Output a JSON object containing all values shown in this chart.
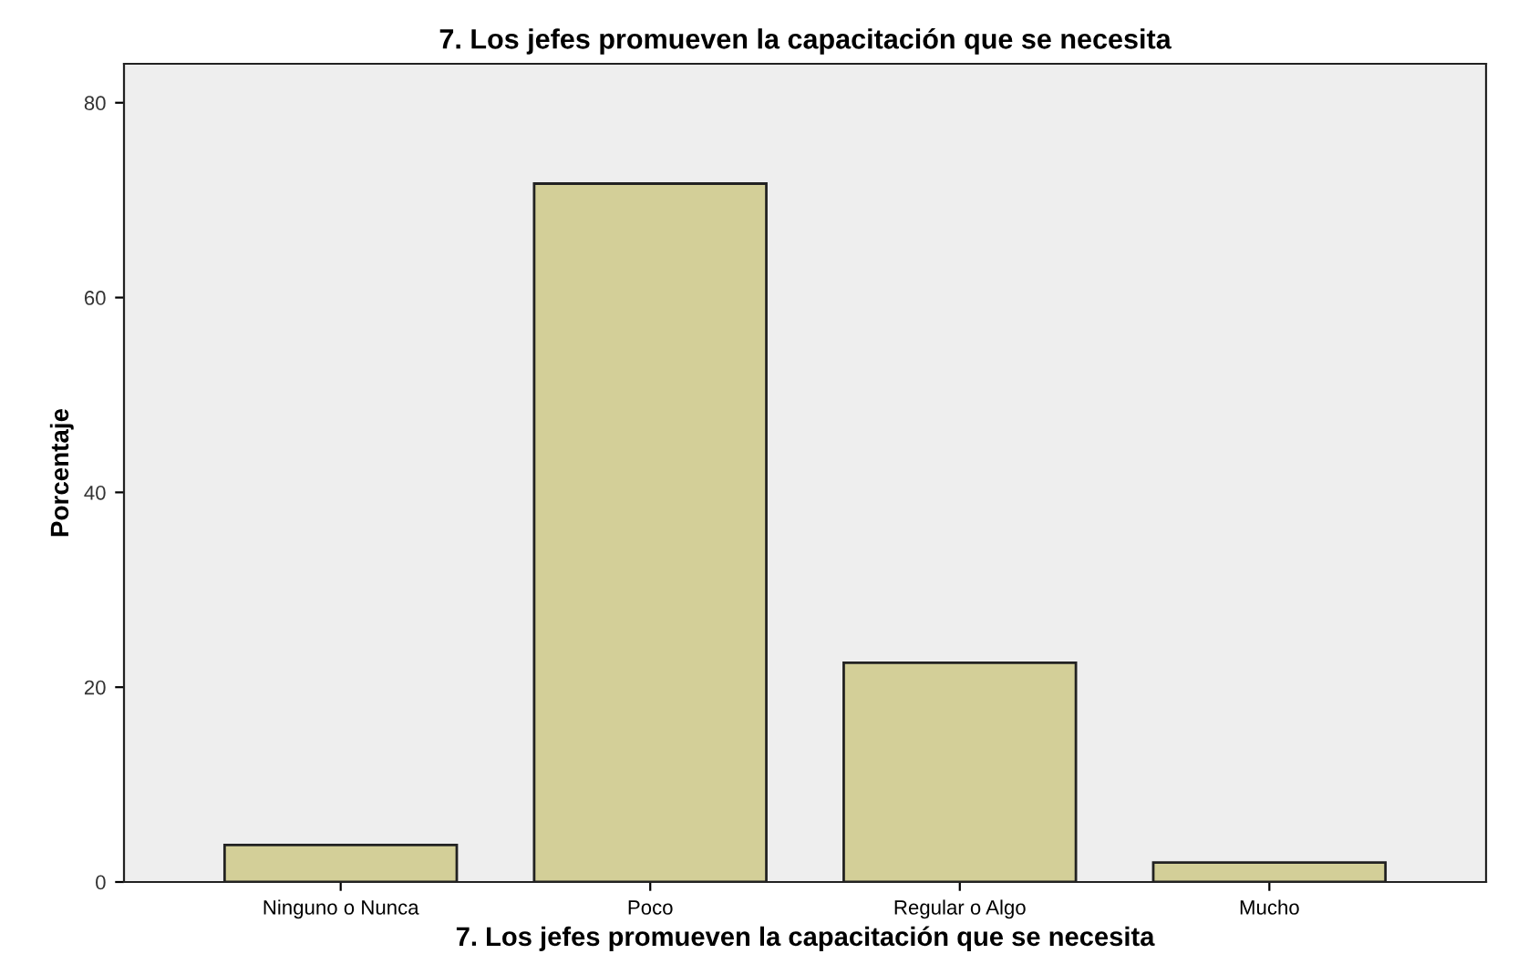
{
  "chart_data": {
    "type": "bar",
    "title": "7. Los jefes promueven la capacitación que se necesita",
    "xlabel": "7. Los jefes promueven la capacitación que se necesita",
    "ylabel": "Porcentaje",
    "categories": [
      "Ninguno o Nunca",
      "Poco",
      "Regular o Algo",
      "Mucho"
    ],
    "series": [
      {
        "color": "#d3cf98",
        "values": [
          3.8,
          71.7,
          22.5,
          2.0
        ]
      }
    ],
    "ylim": [
      0,
      84
    ],
    "yticks": [
      0,
      20,
      40,
      60,
      80
    ],
    "grid": false,
    "legend": false
  }
}
